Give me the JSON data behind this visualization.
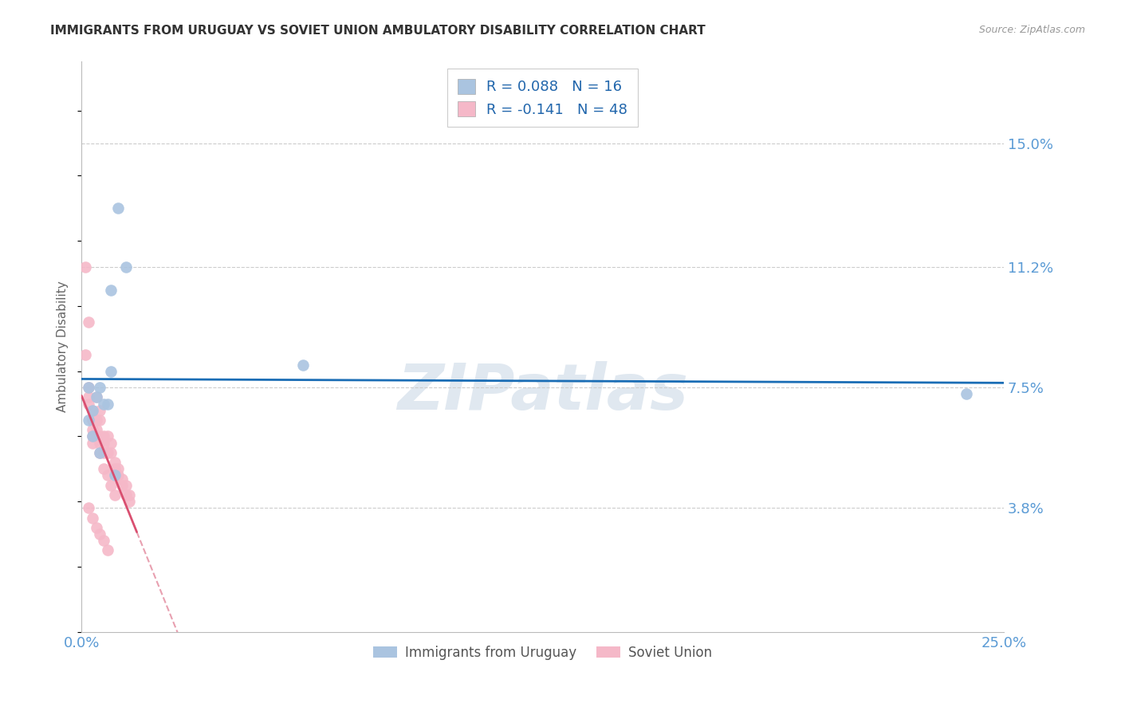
{
  "title": "IMMIGRANTS FROM URUGUAY VS SOVIET UNION AMBULATORY DISABILITY CORRELATION CHART",
  "source": "Source: ZipAtlas.com",
  "ylabel": "Ambulatory Disability",
  "ytick_labels": [
    "15.0%",
    "11.2%",
    "7.5%",
    "3.8%"
  ],
  "ytick_values": [
    0.15,
    0.112,
    0.075,
    0.038
  ],
  "xlim": [
    0.0,
    0.25
  ],
  "ylim": [
    0.0,
    0.175
  ],
  "uruguay_color": "#aac4e0",
  "soviet_color": "#f5b8c8",
  "uruguay_line_color": "#1a6db5",
  "soviet_line_color": "#d94f70",
  "soviet_line_dashed_color": "#e8a0b0",
  "tick_color": "#5b9bd5",
  "watermark": "ZIPatlas",
  "watermark_color": "#e0e8f0",
  "legend_r_eq": "R = ",
  "legend_n_eq": "  N = ",
  "legend_uruguay_r": "0.088",
  "legend_uruguay_n": "16",
  "legend_soviet_r": "-0.141",
  "legend_soviet_n": "48",
  "legend_text_color": "#333333",
  "legend_value_color": "#2166ac",
  "bottom_legend_label1": "Immigrants from Uruguay",
  "bottom_legend_label2": "Soviet Union",
  "uruguay_points_x": [
    0.003,
    0.005,
    0.007,
    0.008,
    0.009,
    0.01,
    0.012,
    0.002,
    0.003,
    0.004,
    0.005,
    0.006,
    0.008,
    0.06,
    0.24,
    0.002
  ],
  "uruguay_points_y": [
    0.068,
    0.075,
    0.07,
    0.105,
    0.048,
    0.13,
    0.112,
    0.065,
    0.06,
    0.072,
    0.055,
    0.07,
    0.08,
    0.082,
    0.073,
    0.075
  ],
  "soviet_points_x": [
    0.001,
    0.001,
    0.002,
    0.002,
    0.002,
    0.002,
    0.002,
    0.003,
    0.003,
    0.003,
    0.003,
    0.003,
    0.003,
    0.003,
    0.004,
    0.004,
    0.004,
    0.004,
    0.004,
    0.005,
    0.005,
    0.005,
    0.005,
    0.005,
    0.005,
    0.006,
    0.006,
    0.006,
    0.006,
    0.006,
    0.007,
    0.007,
    0.007,
    0.007,
    0.008,
    0.008,
    0.008,
    0.009,
    0.009,
    0.009,
    0.01,
    0.01,
    0.011,
    0.011,
    0.012,
    0.012,
    0.013,
    0.013
  ],
  "soviet_points_y": [
    0.112,
    0.085,
    0.095,
    0.075,
    0.072,
    0.07,
    0.038,
    0.068,
    0.065,
    0.065,
    0.062,
    0.06,
    0.058,
    0.035,
    0.072,
    0.065,
    0.062,
    0.06,
    0.032,
    0.068,
    0.065,
    0.06,
    0.058,
    0.055,
    0.03,
    0.06,
    0.058,
    0.055,
    0.05,
    0.028,
    0.06,
    0.055,
    0.048,
    0.025,
    0.058,
    0.055,
    0.045,
    0.052,
    0.05,
    0.042,
    0.05,
    0.048,
    0.047,
    0.045,
    0.045,
    0.042,
    0.042,
    0.04
  ]
}
